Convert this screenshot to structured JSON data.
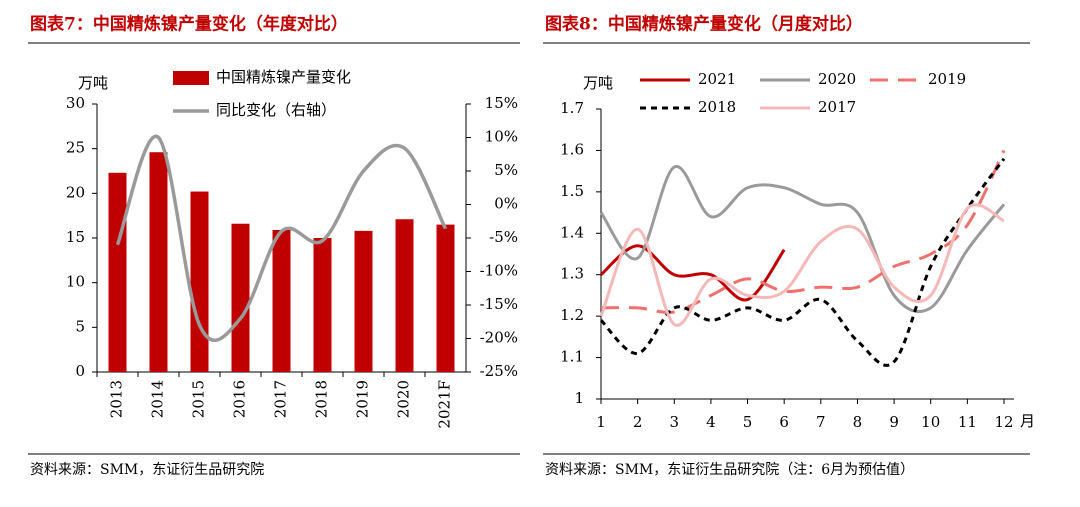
{
  "chart_data": [
    {
      "type": "bar",
      "title": "图表7：中国精炼镍产量变化（年度对比）",
      "y_label": "万吨",
      "source": "资料来源：SMM，东证衍生品研究院",
      "categories": [
        "2013",
        "2014",
        "2015",
        "2016",
        "2017",
        "2018",
        "2019",
        "2020",
        "2021F"
      ],
      "series": [
        {
          "name": "中国精炼镍产量变化",
          "type": "bar",
          "color": "#c00000",
          "values": [
            22.3,
            24.6,
            20.2,
            16.6,
            15.9,
            15.0,
            15.8,
            17.1,
            16.5
          ]
        },
        {
          "name": "同比变化（右轴）",
          "type": "line",
          "axis": "y2",
          "color": "#9a9a9a",
          "values": [
            -6,
            10,
            -18,
            -17,
            -4,
            -5.4,
            5,
            8.4,
            -3.6
          ]
        }
      ],
      "ylim": [
        0,
        30
      ],
      "yticks": [
        0,
        5,
        10,
        15,
        20,
        25,
        30
      ],
      "y2lim": [
        -25,
        15
      ],
      "y2ticks": [
        {
          "value": 15,
          "label": "15%"
        },
        {
          "value": 10,
          "label": "10%"
        },
        {
          "value": 5,
          "label": "5%"
        },
        {
          "value": 0,
          "label": "0%"
        },
        {
          "value": -5,
          "label": "-5%"
        },
        {
          "value": -10,
          "label": "-10%"
        },
        {
          "value": -15,
          "label": "-15%"
        },
        {
          "value": -20,
          "label": "-20%"
        },
        {
          "value": -25,
          "label": "-25%"
        }
      ]
    },
    {
      "type": "line",
      "title": "图表8：中国精炼镍产量变化（月度对比）",
      "y_label": "万吨",
      "x_label": "月",
      "source": "资料来源：SMM，东证衍生品研究院（注：6月为预估值）",
      "x": [
        1,
        2,
        3,
        4,
        5,
        6,
        7,
        8,
        9,
        10,
        11,
        12
      ],
      "xlim": [
        1,
        12
      ],
      "xticks": [
        1,
        2,
        3,
        4,
        5,
        6,
        7,
        8,
        9,
        10,
        11,
        12
      ],
      "ylim": [
        1,
        1.7
      ],
      "yticks": [
        1,
        1.1,
        1.2,
        1.3,
        1.4,
        1.5,
        1.6,
        1.7
      ],
      "series": [
        {
          "name": "2021",
          "color": "#c00000",
          "style": "solid",
          "values": [
            1.3,
            1.37,
            1.3,
            1.3,
            1.24,
            1.36,
            null,
            null,
            null,
            null,
            null,
            null
          ]
        },
        {
          "name": "2020",
          "color": "#9a9a9a",
          "style": "solid",
          "values": [
            1.45,
            1.34,
            1.56,
            1.44,
            1.51,
            1.51,
            1.47,
            1.45,
            1.25,
            1.22,
            1.36,
            1.47
          ]
        },
        {
          "name": "2019",
          "color": "#f07070",
          "style": "dashed",
          "values": [
            1.22,
            1.22,
            1.21,
            1.25,
            1.29,
            1.26,
            1.27,
            1.27,
            1.32,
            1.35,
            1.42,
            1.6
          ]
        },
        {
          "name": "2018",
          "color": "#000000",
          "style": "dotted",
          "values": [
            1.19,
            1.11,
            1.22,
            1.19,
            1.22,
            1.19,
            1.24,
            1.14,
            1.09,
            1.32,
            1.46,
            1.58
          ]
        },
        {
          "name": "2017",
          "color": "#f5b8b8",
          "style": "solid",
          "values": [
            1.2,
            1.41,
            1.18,
            1.29,
            1.25,
            1.26,
            1.38,
            1.41,
            1.27,
            1.25,
            1.46,
            1.43
          ]
        }
      ]
    }
  ]
}
